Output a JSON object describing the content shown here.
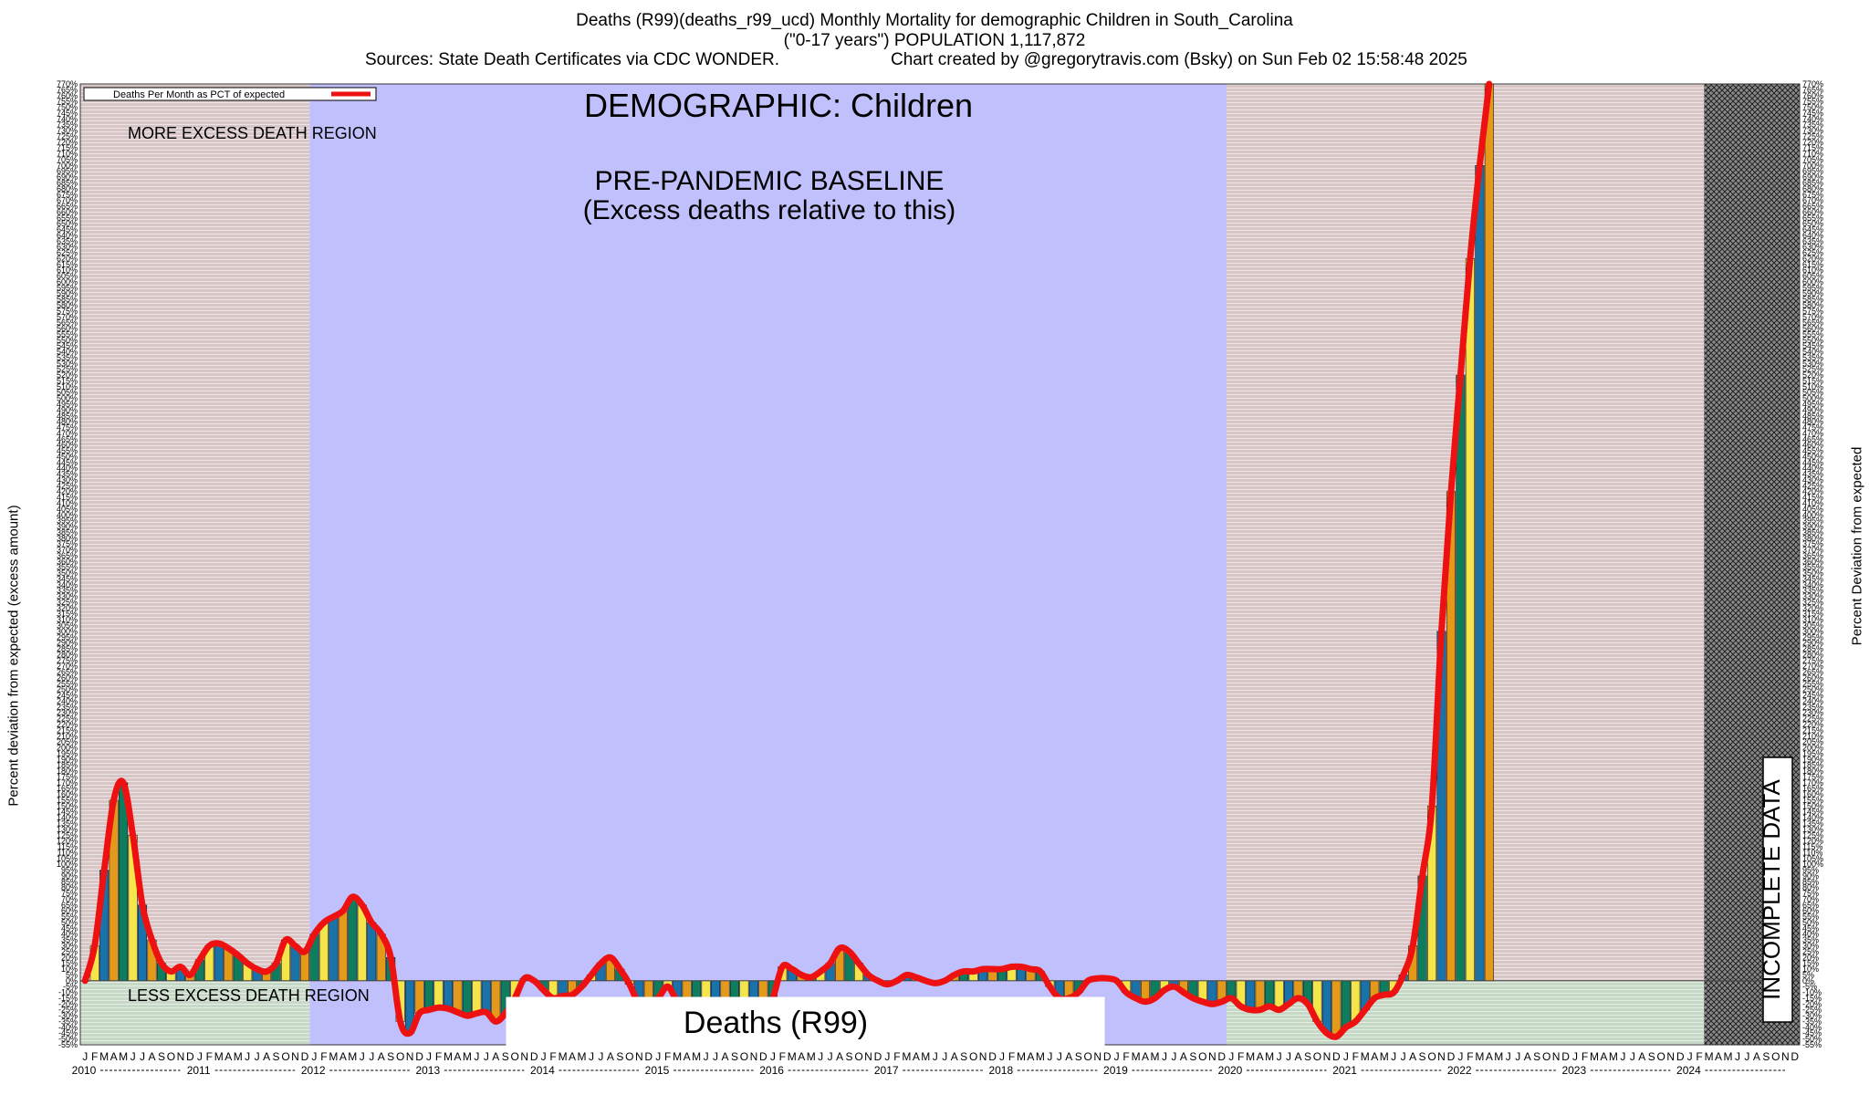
{
  "header": {
    "line1": "Deaths (R99)(deaths_r99_ucd) Monthly Mortality for demographic Children in South_Carolina",
    "line2": "(\"0-17 years\") POPULATION 1,117,872",
    "sources": "Sources: State Death Certificates via CDC WONDER.",
    "credit": "Chart created by @gregorytravis.com (Bsky) on Sun Feb 02 15:58:48 2025"
  },
  "labels": {
    "y_left": "Percent deviation from expected (excess amount)",
    "y_right": "Percent Deviation from expected",
    "legend": "Deaths Per Month as PCT of expected",
    "demographic": "DEMOGRAPHIC: Children",
    "baseline_line1": "PRE-PANDEMIC BASELINE",
    "baseline_line2": "(Excess deaths relative to this)",
    "more_excess": "MORE EXCESS DEATH REGION",
    "less_excess": "LESS EXCESS DEATH REGION",
    "incomplete": "INCOMPLETE DATA",
    "cause_box": "Deaths (R99)"
  },
  "colors": {
    "line": "#ee1111",
    "baseline_region": "#c0c0fc",
    "more_region": "#d8c6c6",
    "less_region": "#c6d8c6",
    "incomplete_region": "#707070",
    "bar_palette": [
      "#0e7d5e",
      "#f3e54a",
      "#1a73a8",
      "#e39a1a"
    ]
  },
  "chart_data": {
    "type": "bar",
    "title": "Deaths (R99)(deaths_r99_ucd) Monthly Mortality for demographic Children in South_Carolina",
    "ylabel": "Percent deviation from expected (excess amount)",
    "ylim": [
      -55,
      770
    ],
    "y_tick_step": 5,
    "x_start": "2010-01",
    "month_letters": [
      "J",
      "F",
      "M",
      "A",
      "M",
      "J",
      "J",
      "A",
      "S",
      "O",
      "N",
      "D"
    ],
    "years": [
      2010,
      2011,
      2012,
      2013,
      2014,
      2015,
      2016,
      2017,
      2018,
      2019,
      2020,
      2021,
      2022,
      2023,
      2024
    ],
    "series": [
      {
        "name": "Deaths Per Month as PCT of expected",
        "values": [
          0,
          30,
          95,
          155,
          170,
          125,
          65,
          35,
          15,
          8,
          12,
          5,
          18,
          30,
          32,
          28,
          22,
          15,
          10,
          8,
          15,
          35,
          30,
          25,
          40,
          50,
          55,
          60,
          72,
          65,
          50,
          40,
          20,
          -35,
          -45,
          -28,
          -25,
          -23,
          -24,
          -27,
          -30,
          -28,
          -27,
          -35,
          -28,
          -15,
          2,
          0,
          -8,
          -15,
          -13,
          -12,
          -5,
          5,
          15,
          20,
          10,
          -3,
          -20,
          -22,
          -15,
          -5,
          -18,
          -25,
          -28,
          -25,
          -20,
          -30,
          -28,
          -45,
          -40,
          -30,
          -15,
          12,
          10,
          5,
          3,
          8,
          15,
          28,
          25,
          15,
          5,
          0,
          -3,
          0,
          5,
          3,
          0,
          -2,
          0,
          5,
          8,
          8,
          10,
          10,
          10,
          12,
          12,
          10,
          8,
          -5,
          -15,
          -15,
          -10,
          0,
          2,
          2,
          0,
          -10,
          -15,
          -18,
          -15,
          -8,
          -5,
          -10,
          -15,
          -18,
          -20,
          -18,
          -15,
          -22,
          -25,
          -25,
          -22,
          -25,
          -20,
          -15,
          -20,
          -35,
          -45,
          -48,
          -40,
          -35,
          -25,
          -15,
          -12,
          -10,
          5,
          30,
          90,
          150,
          300,
          420,
          520,
          620,
          700,
          770
        ]
      }
    ],
    "regions": [
      {
        "label": "MORE EXCESS DEATH REGION",
        "start": "2010-01",
        "end": "2012-01"
      },
      {
        "label": "PRE-PANDEMIC BASELINE",
        "start": "2012-01",
        "end": "2020-01"
      },
      {
        "label": "INCOMPLETE DATA",
        "start": "2024-03",
        "end": "2024-12"
      }
    ],
    "grid": true,
    "legend_position": "top-left"
  }
}
